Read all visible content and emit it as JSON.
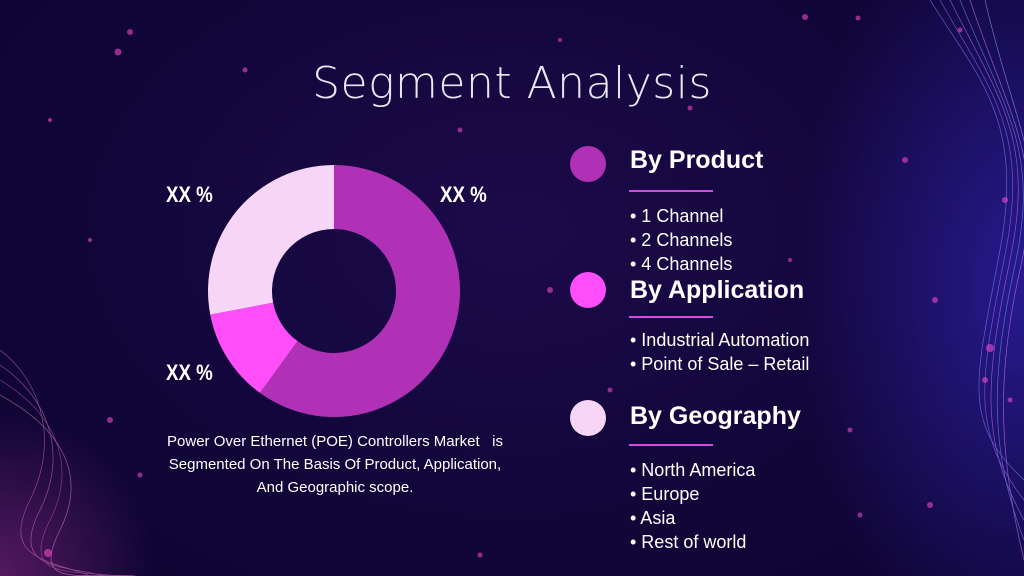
{
  "title": "Segment Analysis",
  "chart_data": {
    "type": "pie",
    "style": "donut",
    "labels_shown": [
      "XX %",
      "XX %",
      "XX %"
    ],
    "slices": [
      {
        "value": 60,
        "color": "#b131b6",
        "label": "XX %"
      },
      {
        "value": 12,
        "color": "#ff4dfa",
        "label": "XX %"
      },
      {
        "value": 28,
        "color": "#f7d5f6",
        "label": "XX %"
      }
    ]
  },
  "caption": {
    "line1": "Power Over Ethernet (POE) Controllers Market   is",
    "line2": "Segmented On The Basis Of Product, Application,",
    "line3": "And Geographic scope."
  },
  "segments": [
    {
      "title": "By Product",
      "color": "#b131b6",
      "items": [
        "• 1 Channel",
        "• 2 Channels",
        "• 4 Channels"
      ]
    },
    {
      "title": "By Application",
      "color": "#ff4dfa",
      "items": [
        "• Industrial Automation",
        "• Point of Sale – Retail"
      ]
    },
    {
      "title": "By Geography",
      "color": "#f7d5f6",
      "items": [
        "• North America",
        "• Europe",
        "• Asia",
        "• Rest of world"
      ]
    }
  ]
}
